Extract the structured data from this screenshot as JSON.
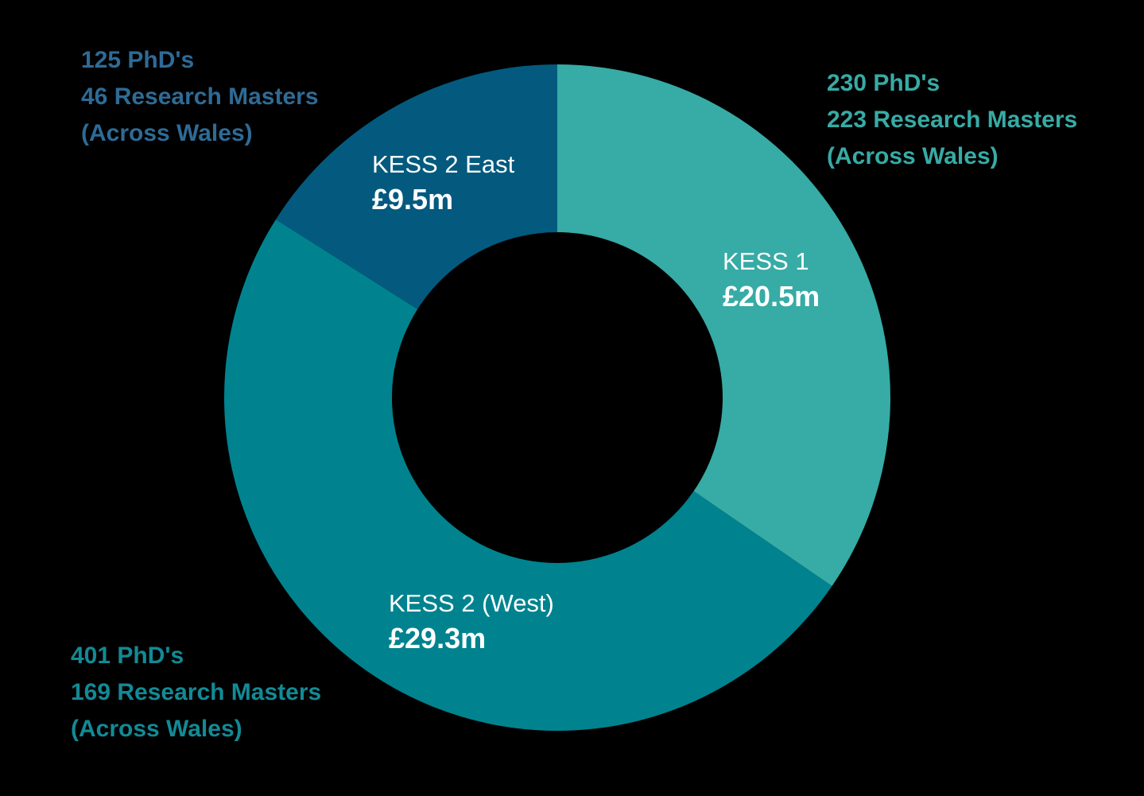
{
  "chart_data": {
    "type": "pie",
    "variant": "donut",
    "slices": [
      {
        "label": "KESS 1",
        "value": 20.5,
        "value_label": "£20.5m",
        "color": "#37ABA5"
      },
      {
        "label": "KESS 2 (West)",
        "value": 29.3,
        "value_label": "£29.3m",
        "color": "#00838F"
      },
      {
        "label": "KESS 2 East",
        "value": 9.5,
        "value_label": "£9.5m",
        "color": "#035A7E"
      }
    ]
  },
  "notes": {
    "kess1": {
      "line1": "230 PhD's",
      "line2": "223 Research Masters",
      "line3": "(Across Wales)",
      "color": "#37ABA5"
    },
    "kess2_west": {
      "line1": "401 PhD's",
      "line2": "169 Research Masters",
      "line3": "(Across Wales)",
      "color": "#128A96"
    },
    "kess2_east": {
      "line1": "125 PhD's",
      "line2": "46 Research Masters",
      "line3": "(Across Wales)",
      "color": "#2E6B96"
    }
  },
  "colors": {
    "background": "#000000",
    "label_text": "#FFFFFF"
  }
}
